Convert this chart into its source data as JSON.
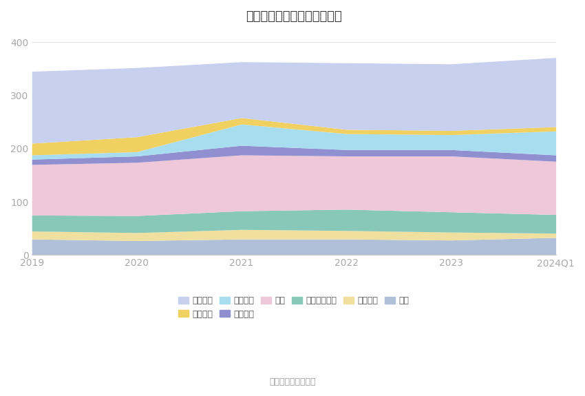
{
  "title": "历年主要资产堆积图（亿元）",
  "source": "数据来源：恒生聚源",
  "x_labels": [
    "2019",
    "2020",
    "2021",
    "2022",
    "2023",
    "2024Q1"
  ],
  "x_values": [
    0,
    1,
    2,
    3,
    4,
    5
  ],
  "series": [
    {
      "name": "其它",
      "color": "#b0c0d8",
      "values": [
        30,
        27,
        30,
        30,
        28,
        33
      ]
    },
    {
      "name": "固定资产",
      "color": "#f0e0a0",
      "values": [
        15,
        15,
        18,
        16,
        15,
        8
      ]
    },
    {
      "name": "长期股权投资",
      "color": "#88c8b8",
      "values": [
        30,
        32,
        35,
        40,
        38,
        35
      ]
    },
    {
      "name": "存货",
      "color": "#eec8d8",
      "values": [
        95,
        100,
        105,
        100,
        105,
        100
      ]
    },
    {
      "name": "预付款项",
      "color": "#9090d0",
      "values": [
        10,
        12,
        18,
        12,
        12,
        12
      ]
    },
    {
      "name": "应收账款",
      "color": "#a8ddf0",
      "values": [
        8,
        8,
        40,
        30,
        28,
        45
      ]
    },
    {
      "name": "应收票据",
      "color": "#f0d060",
      "values": [
        22,
        28,
        12,
        8,
        8,
        8
      ]
    },
    {
      "name": "货币资金",
      "color": "#c8d0f0",
      "values": [
        135,
        130,
        105,
        125,
        125,
        130
      ]
    }
  ],
  "ylim": [
    0,
    420
  ],
  "yticks": [
    0,
    100,
    200,
    300,
    400
  ],
  "bg_color": "#ffffff",
  "grid_color": "#e5e5e5",
  "tick_color": "#aaaaaa",
  "title_color": "#333333",
  "source_color": "#999999"
}
